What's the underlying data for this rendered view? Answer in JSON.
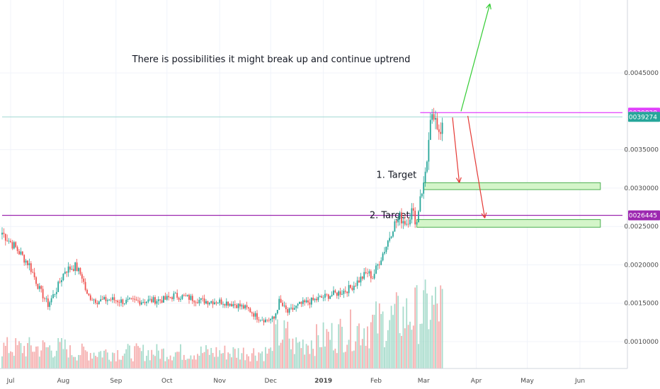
{
  "chart_data": {
    "type": "candlestick",
    "title": "",
    "xlabel": "",
    "ylabel": "",
    "x_ticks": [
      {
        "label": "Jul",
        "bar": 5
      },
      {
        "label": "Aug",
        "bar": 36
      },
      {
        "label": "Sep",
        "bar": 67
      },
      {
        "label": "Oct",
        "bar": 97
      },
      {
        "label": "Nov",
        "bar": 128
      },
      {
        "label": "Dec",
        "bar": 158
      },
      {
        "label": "2019",
        "bar": 189,
        "bold": true
      },
      {
        "label": "Feb",
        "bar": 220
      },
      {
        "label": "Mar",
        "bar": 248
      },
      {
        "label": "Apr",
        "bar": 279
      },
      {
        "label": "May",
        "bar": 309
      },
      {
        "label": "Jun",
        "bar": 340
      }
    ],
    "y_ticks": [
      "0.0045000",
      "0.0035000",
      "0.0030000",
      "0.0025000",
      "0.0020000",
      "0.0015000",
      "0.0010000"
    ],
    "y_tick_values": [
      0.0045,
      0.0035,
      0.003,
      0.0025,
      0.002,
      0.0015,
      0.001
    ],
    "ylim": [
      0.00065,
      0.00545
    ],
    "price_tags": [
      {
        "label": "0.0039828",
        "value": 0.0039828,
        "color": "#e040fb"
      },
      {
        "label": "0.0039274",
        "value": 0.0039274,
        "color": "#26a69a"
      },
      {
        "label": "0.0026445",
        "value": 0.0026445,
        "color": "#9c27b0"
      }
    ],
    "horizontal_lines": [
      {
        "value": 0.0039828,
        "color": "#e040fb",
        "from_bar": 246,
        "to_bar": 365
      },
      {
        "value": 0.0039274,
        "color": "#9fd8d2",
        "from_bar": 0,
        "to_bar": 365
      },
      {
        "value": 0.0026445,
        "color": "#9c27b0",
        "from_bar": 0,
        "to_bar": 365
      }
    ],
    "target_boxes": [
      {
        "label": "1. Target",
        "from_bar": 248,
        "to_bar": 352,
        "top": 0.00307,
        "bottom": 0.00298
      },
      {
        "label": "2. Target",
        "from_bar": 244,
        "to_bar": 352,
        "top": 0.00259,
        "bottom": 0.00249
      }
    ],
    "annotation": "There is possibilities it might break up and continue uptrend",
    "arrows": [
      {
        "color": "#33cc33",
        "from_bar": 270,
        "from_value": 0.004,
        "to_bar": 287,
        "to_value": 0.0054
      },
      {
        "color": "#e53935",
        "from_bar": 265,
        "from_value": 0.00392,
        "to_bar": 269,
        "to_value": 0.00307
      },
      {
        "color": "#e53935",
        "from_bar": 274,
        "from_value": 0.00394,
        "to_bar": 284,
        "to_value": 0.00261
      }
    ],
    "price_anchors": [
      [
        0,
        0.00242
      ],
      [
        8,
        0.00222
      ],
      [
        16,
        0.002
      ],
      [
        22,
        0.00168
      ],
      [
        27,
        0.00148
      ],
      [
        32,
        0.00168
      ],
      [
        37,
        0.00193
      ],
      [
        43,
        0.00198
      ],
      [
        47,
        0.00185
      ],
      [
        50,
        0.0016
      ],
      [
        56,
        0.00153
      ],
      [
        64,
        0.00155
      ],
      [
        72,
        0.00152
      ],
      [
        85,
        0.00153
      ],
      [
        96,
        0.00155
      ],
      [
        101,
        0.0016
      ],
      [
        108,
        0.00158
      ],
      [
        118,
        0.00153
      ],
      [
        130,
        0.00152
      ],
      [
        138,
        0.00148
      ],
      [
        145,
        0.00142
      ],
      [
        150,
        0.00132
      ],
      [
        155,
        0.00128
      ],
      [
        160,
        0.0013
      ],
      [
        163,
        0.00152
      ],
      [
        168,
        0.00138
      ],
      [
        175,
        0.00148
      ],
      [
        185,
        0.00155
      ],
      [
        192,
        0.0016
      ],
      [
        200,
        0.00165
      ],
      [
        205,
        0.0017
      ],
      [
        210,
        0.0018
      ],
      [
        215,
        0.0019
      ],
      [
        218,
        0.00184
      ],
      [
        222,
        0.00205
      ],
      [
        226,
        0.00225
      ],
      [
        230,
        0.0025
      ],
      [
        234,
        0.00262
      ],
      [
        238,
        0.00255
      ],
      [
        241,
        0.0027
      ],
      [
        244,
        0.00255
      ],
      [
        246,
        0.00292
      ],
      [
        248,
        0.00303
      ],
      [
        250,
        0.0034
      ],
      [
        252,
        0.0038
      ],
      [
        254,
        0.00392
      ],
      [
        256,
        0.0037
      ],
      [
        258,
        0.0038
      ],
      [
        259,
        0.00392
      ]
    ],
    "volume_pattern": "low mid-2018, spikes mid-Dec 2018, rising through Feb-Mar 2019"
  }
}
